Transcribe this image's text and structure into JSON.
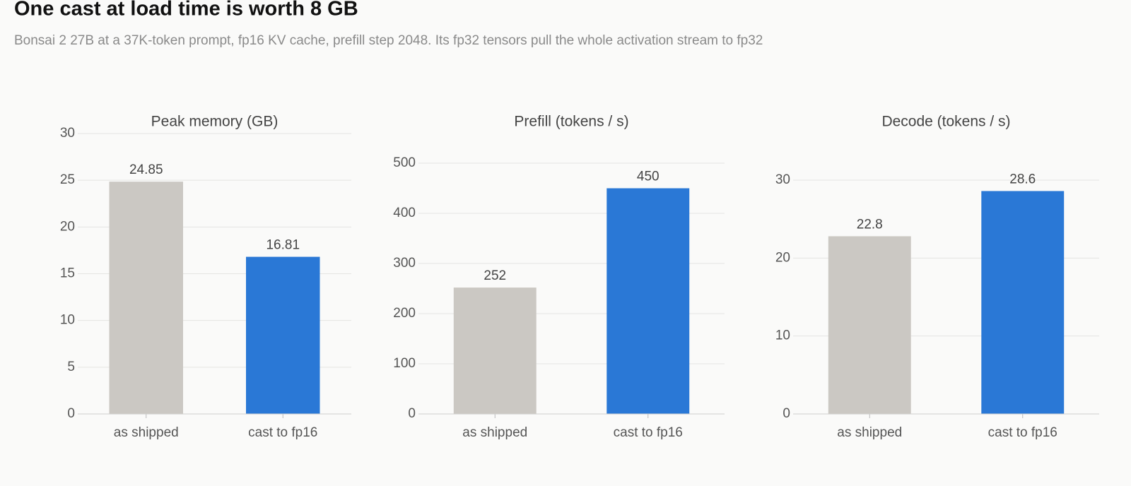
{
  "header": {
    "title": "One cast at load time is worth 8 GB",
    "subtitle": "Bonsai 2 27B at a 37K-token prompt, fp16 KV cache, prefill step 2048. Its fp32 tensors pull the whole activation stream to fp32"
  },
  "chart_data": [
    {
      "type": "bar",
      "title": "Peak memory (GB)",
      "categories": [
        "as shipped",
        "cast to fp16"
      ],
      "values": [
        24.85,
        16.81
      ],
      "colors": [
        "#cbc8c3",
        "#2a78d6"
      ],
      "ylim": [
        0,
        30
      ],
      "yticks": [
        0,
        5,
        10,
        15,
        20,
        25,
        30
      ],
      "grid": true
    },
    {
      "type": "bar",
      "title": "Prefill (tokens / s)",
      "categories": [
        "as shipped",
        "cast to fp16"
      ],
      "values": [
        252,
        450
      ],
      "colors": [
        "#cbc8c3",
        "#2a78d6"
      ],
      "ylim": [
        0,
        500
      ],
      "yticks": [
        0,
        100,
        200,
        300,
        400,
        500
      ],
      "grid": true
    },
    {
      "type": "bar",
      "title": "Decode (tokens / s)",
      "categories": [
        "as shipped",
        "cast to fp16"
      ],
      "values": [
        22.8,
        28.6
      ],
      "colors": [
        "#cbc8c3",
        "#2a78d6"
      ],
      "ylim": [
        0,
        30
      ],
      "yticks": [
        0,
        10,
        20,
        30
      ],
      "grid": true
    }
  ]
}
